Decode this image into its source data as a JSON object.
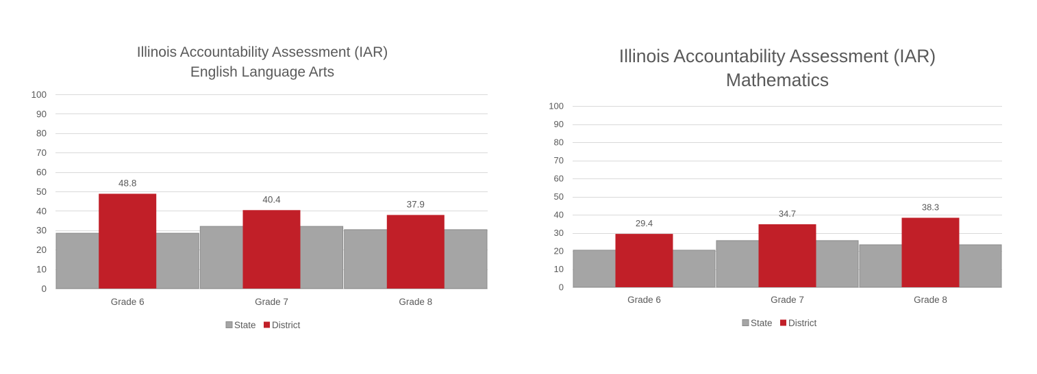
{
  "chart_data": [
    {
      "type": "bar",
      "title": "Illinois Accountability Assessment (IAR)",
      "subtitle": "English Language Arts",
      "categories": [
        "Grade 6",
        "Grade 7",
        "Grade 8"
      ],
      "series": [
        {
          "name": "State",
          "values": [
            28.5,
            32.0,
            30.3
          ],
          "color": "#a5a5a5",
          "data_labels": false
        },
        {
          "name": "District",
          "values": [
            48.8,
            40.4,
            37.9
          ],
          "color": "#c11f28",
          "data_labels": true
        }
      ],
      "ylim": [
        0,
        100
      ],
      "yticks": [
        0,
        10,
        20,
        30,
        40,
        50,
        60,
        70,
        80,
        90,
        100
      ],
      "grid": true,
      "legend": "bottom"
    },
    {
      "type": "bar",
      "title": "Illinois Accountability Assessment (IAR)",
      "subtitle": "Mathematics",
      "categories": [
        "Grade 6",
        "Grade 7",
        "Grade 8"
      ],
      "series": [
        {
          "name": "State",
          "values": [
            20.4,
            25.7,
            23.4
          ],
          "color": "#a5a5a5",
          "data_labels": false
        },
        {
          "name": "District",
          "values": [
            29.4,
            34.7,
            38.3
          ],
          "color": "#c11f28",
          "data_labels": true
        }
      ],
      "ylim": [
        0,
        100
      ],
      "yticks": [
        0,
        10,
        20,
        30,
        40,
        50,
        60,
        70,
        80,
        90,
        100
      ],
      "grid": true,
      "legend": "bottom"
    }
  ]
}
